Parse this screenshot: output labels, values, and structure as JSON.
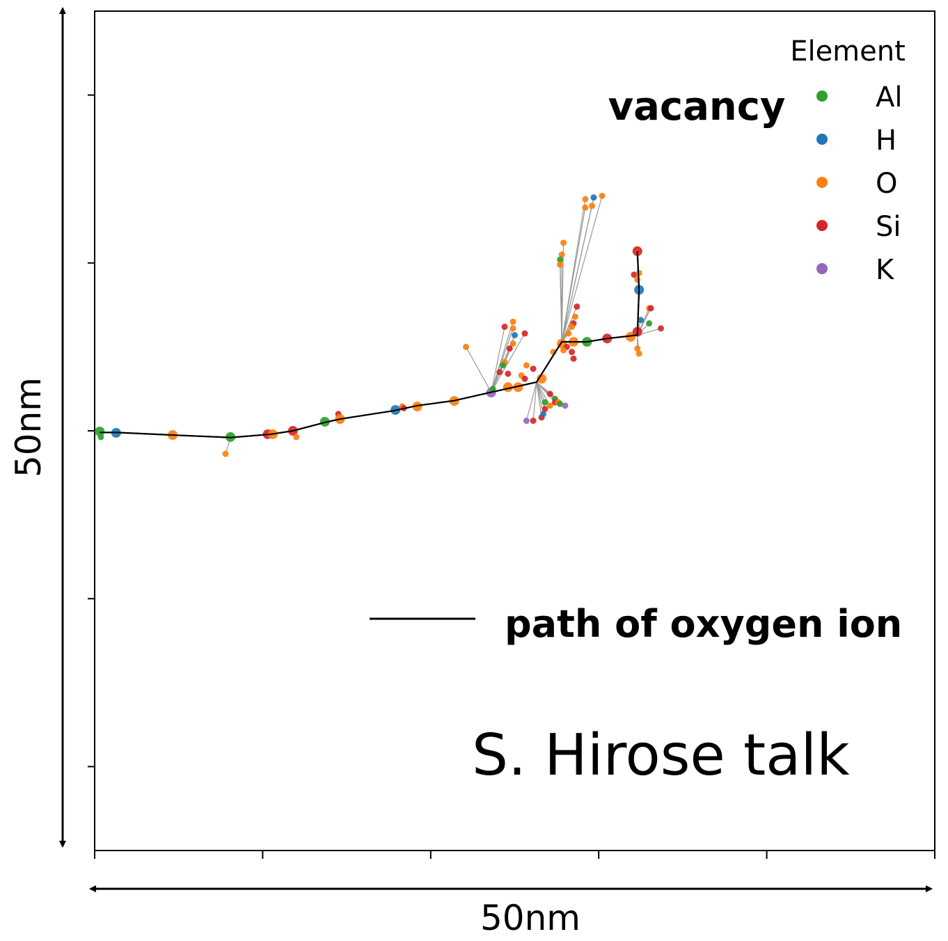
{
  "chart_data": {
    "type": "scatter",
    "title": "",
    "xlabel": "50nm",
    "ylabel": "50nm",
    "xlim": [
      0,
      50
    ],
    "ylim": [
      0,
      50
    ],
    "xticks": [
      0,
      10,
      20,
      30,
      40,
      50
    ],
    "yticks": [
      5,
      15,
      25,
      35,
      45
    ],
    "tick_labels_shown": false,
    "grid": false,
    "legend": {
      "title": "Element",
      "placement": "top-right",
      "entries": [
        {
          "name": "Al",
          "color": "#2ca02c"
        },
        {
          "name": "H",
          "color": "#1f77b4"
        },
        {
          "name": "O",
          "color": "#ff7f0e"
        },
        {
          "name": "Si",
          "color": "#d62728"
        },
        {
          "name": "K",
          "color": "#9467bd"
        }
      ]
    },
    "annotations": {
      "vacancy": "vacancy",
      "path_label": "path of oxygen ion",
      "credit": "S. Hirose talk"
    },
    "path": [
      [
        0.3,
        24.9
      ],
      [
        1.3,
        24.9
      ],
      [
        4.6,
        24.75
      ],
      [
        8.1,
        24.6
      ],
      [
        10.5,
        24.8
      ],
      [
        11.8,
        25.0
      ],
      [
        13.7,
        25.5
      ],
      [
        14.6,
        25.7
      ],
      [
        17.8,
        26.2
      ],
      [
        19.2,
        26.5
      ],
      [
        21.4,
        26.8
      ],
      [
        23.6,
        27.3
      ],
      [
        26.3,
        27.9
      ],
      [
        27.8,
        30.3
      ],
      [
        29.3,
        30.3
      ],
      [
        30.5,
        30.5
      ],
      [
        32.3,
        30.7
      ],
      [
        32.4,
        33.4
      ],
      [
        32.3,
        35.7
      ]
    ],
    "atoms_fields": [
      "element",
      "x",
      "y",
      "vacancy_site",
      "linked_path_vertex"
    ],
    "atoms": [
      [
        "Al",
        0.3,
        24.96,
        1,
        -1
      ],
      [
        "Al",
        0.37,
        24.63,
        0,
        -1
      ],
      [
        "H",
        1.28,
        24.88,
        1,
        -1
      ],
      [
        "O",
        4.64,
        24.75,
        1,
        -1
      ],
      [
        "Al",
        8.08,
        24.63,
        1,
        -1
      ],
      [
        "O",
        7.79,
        23.63,
        0,
        3
      ],
      [
        "Si",
        10.3,
        24.8,
        1,
        -1
      ],
      [
        "O",
        10.6,
        24.8,
        1,
        -1
      ],
      [
        "Si",
        11.8,
        25.0,
        1,
        -1
      ],
      [
        "O",
        12.0,
        24.63,
        0,
        -1
      ],
      [
        "Al",
        13.7,
        25.54,
        1,
        -1
      ],
      [
        "Si",
        14.5,
        26.0,
        0,
        -1
      ],
      [
        "O",
        14.6,
        25.7,
        1,
        -1
      ],
      [
        "H",
        17.9,
        26.24,
        1,
        -1
      ],
      [
        "O",
        18.3,
        26.45,
        0,
        -1
      ],
      [
        "Si",
        18.4,
        26.35,
        0,
        -1
      ],
      [
        "O",
        19.2,
        26.45,
        1,
        -1
      ],
      [
        "O",
        21.4,
        26.78,
        1,
        -1
      ],
      [
        "K",
        23.6,
        27.28,
        1,
        -1
      ],
      [
        "Al",
        23.7,
        27.5,
        0,
        -1
      ],
      [
        "O",
        22.1,
        30.0,
        0,
        11
      ],
      [
        "Si",
        24.4,
        31.2,
        0,
        11
      ],
      [
        "O",
        24.9,
        31.5,
        0,
        11
      ],
      [
        "O",
        24.9,
        31.1,
        0,
        11
      ],
      [
        "H",
        25.0,
        30.7,
        0,
        11
      ],
      [
        "Si",
        25.6,
        30.8,
        0,
        11
      ],
      [
        "O",
        24.9,
        30.2,
        0,
        11
      ],
      [
        "Si",
        24.7,
        29.9,
        0,
        11
      ],
      [
        "O",
        24.4,
        29.1,
        0,
        11
      ],
      [
        "Al",
        24.3,
        28.9,
        0,
        11
      ],
      [
        "Si",
        24.1,
        28.5,
        0,
        11
      ],
      [
        "Si",
        24.6,
        28.4,
        0,
        -1
      ],
      [
        "O",
        24.6,
        27.6,
        1,
        -1
      ],
      [
        "O",
        25.2,
        27.6,
        1,
        -1
      ],
      [
        "O",
        26.6,
        28.1,
        1,
        -1
      ],
      [
        "O",
        25.7,
        28.9,
        0,
        -1
      ],
      [
        "Si",
        26.1,
        28.7,
        0,
        -1
      ],
      [
        "O",
        25.4,
        28.3,
        0,
        -1
      ],
      [
        "Si",
        25.6,
        28.1,
        0,
        -1
      ],
      [
        "K",
        25.7,
        25.6,
        0,
        12
      ],
      [
        "Si",
        26.1,
        25.6,
        0,
        12
      ],
      [
        "Si",
        26.6,
        25.8,
        0,
        12
      ],
      [
        "H",
        26.7,
        26.0,
        0,
        12
      ],
      [
        "Al",
        26.8,
        26.7,
        0,
        12
      ],
      [
        "Si",
        27.1,
        27.2,
        0,
        12
      ],
      [
        "Al",
        27.4,
        26.9,
        0,
        12
      ],
      [
        "Si",
        27.4,
        26.7,
        0,
        12
      ],
      [
        "O",
        27.6,
        26.7,
        0,
        12
      ],
      [
        "Al",
        27.7,
        26.6,
        0,
        12
      ],
      [
        "K",
        28.0,
        26.5,
        0,
        12
      ],
      [
        "Si",
        26.8,
        26.3,
        0,
        12
      ],
      [
        "O",
        27.1,
        26.5,
        0,
        12
      ],
      [
        "O",
        27.8,
        30.2,
        1,
        -1
      ],
      [
        "O",
        28.5,
        30.3,
        1,
        -1
      ],
      [
        "Si",
        28.1,
        30.0,
        0,
        -1
      ],
      [
        "Si",
        28.4,
        29.7,
        0,
        -1
      ],
      [
        "Si",
        28.5,
        29.3,
        0,
        -1
      ],
      [
        "O",
        27.3,
        29.7,
        0,
        -1
      ],
      [
        "O",
        27.9,
        29.8,
        0,
        -1
      ],
      [
        "O",
        27.9,
        36.2,
        0,
        13
      ],
      [
        "O",
        27.8,
        35.5,
        0,
        13
      ],
      [
        "Al",
        27.7,
        35.2,
        0,
        13
      ],
      [
        "O",
        27.7,
        34.9,
        0,
        13
      ],
      [
        "O",
        29.2,
        38.8,
        0,
        13
      ],
      [
        "H",
        29.7,
        38.9,
        0,
        13
      ],
      [
        "O",
        30.2,
        39.0,
        0,
        13
      ],
      [
        "O",
        29.2,
        38.3,
        0,
        13
      ],
      [
        "O",
        29.6,
        38.4,
        0,
        13
      ],
      [
        "Si",
        28.7,
        32.4,
        0,
        13
      ],
      [
        "O",
        28.6,
        31.8,
        0,
        13
      ],
      [
        "Si",
        28.5,
        31.4,
        0,
        13
      ],
      [
        "O",
        28.4,
        31.2,
        0,
        13
      ],
      [
        "O",
        28.2,
        30.8,
        0,
        13
      ],
      [
        "Al",
        29.3,
        30.3,
        1,
        -1
      ],
      [
        "Si",
        30.5,
        30.5,
        1,
        -1
      ],
      [
        "O",
        31.9,
        30.6,
        1,
        -1
      ],
      [
        "Si",
        32.3,
        30.9,
        1,
        -1
      ],
      [
        "H",
        32.5,
        31.6,
        0,
        16
      ],
      [
        "Al",
        33.0,
        31.4,
        0,
        16
      ],
      [
        "O",
        33.0,
        32.3,
        0,
        16
      ],
      [
        "Si",
        33.1,
        32.3,
        0,
        16
      ],
      [
        "Si",
        33.7,
        31.1,
        0,
        16
      ],
      [
        "O",
        32.3,
        29.9,
        0,
        16
      ],
      [
        "O",
        32.4,
        29.6,
        0,
        16
      ],
      [
        "H",
        32.4,
        33.4,
        1,
        -1
      ],
      [
        "Si",
        32.1,
        34.3,
        0,
        -1
      ],
      [
        "O",
        32.4,
        34.4,
        0,
        -1
      ],
      [
        "O",
        32.3,
        34.0,
        0,
        -1
      ],
      [
        "Si",
        32.3,
        35.7,
        1,
        -1
      ]
    ]
  }
}
